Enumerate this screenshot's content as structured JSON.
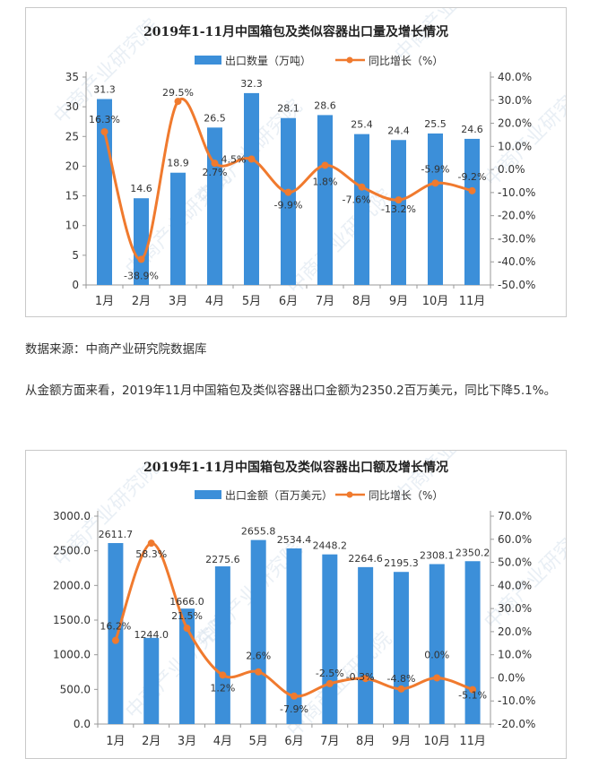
{
  "source_text": "数据来源：中商产业研究院数据库",
  "description_text": "从金额方面来看，2019年11月中国箱包及类似容器出口金额为2350.2百万美元，同比下降5.1%。",
  "watermark": "中商产业研究院",
  "colors": {
    "bar": "#3c8fd9",
    "line": "#f07a2e",
    "axis": "#999999",
    "text": "#333333"
  },
  "chart_data": [
    {
      "type": "bar",
      "title": "2019年1-11月中国箱包及类似容器出口量及增长情况",
      "categories": [
        "1月",
        "2月",
        "3月",
        "4月",
        "5月",
        "6月",
        "7月",
        "8月",
        "9月",
        "10月",
        "11月"
      ],
      "series": [
        {
          "name": "出口数量（万吨）",
          "type": "bar",
          "axis": "left",
          "values": [
            31.3,
            14.6,
            18.9,
            26.5,
            32.3,
            28.1,
            28.6,
            25.4,
            24.4,
            25.5,
            24.6
          ],
          "labels": [
            "31.3",
            "14.6",
            "18.9",
            "26.5",
            "32.3",
            "28.1",
            "28.6",
            "25.4",
            "24.4",
            "25.5",
            "24.6"
          ]
        },
        {
          "name": "同比增长（%）",
          "type": "line",
          "axis": "right",
          "values": [
            16.3,
            -38.9,
            29.5,
            2.7,
            4.5,
            -9.9,
            1.8,
            -7.6,
            -13.2,
            -5.9,
            -9.2
          ],
          "labels": [
            "16.3%",
            "-38.9%",
            "29.5%",
            "2.7%",
            "4.5%",
            "-9.9%",
            "1.8%",
            "-7.6%",
            "-13.2%",
            "-5.9%",
            "-9.2%"
          ]
        }
      ],
      "ylim": [
        0,
        35
      ],
      "yticks": [
        "0",
        "5",
        "10",
        "15",
        "20",
        "25",
        "30",
        "35"
      ],
      "y2lim": [
        -50,
        40
      ],
      "y2ticks": [
        "-50.0%",
        "-40.0%",
        "-30.0%",
        "-20.0%",
        "-10.0%",
        "0.0%",
        "10.0%",
        "20.0%",
        "30.0%",
        "40.0%"
      ],
      "legend_position": "top-center"
    },
    {
      "type": "bar",
      "title": "2019年1-11月中国箱包及类似容器出口额及增长情况",
      "categories": [
        "1月",
        "2月",
        "3月",
        "4月",
        "5月",
        "6月",
        "7月",
        "8月",
        "9月",
        "10月",
        "11月"
      ],
      "series": [
        {
          "name": "出口金额（百万美元）",
          "type": "bar",
          "axis": "left",
          "values": [
            2611.7,
            1244.0,
            1666.0,
            2275.6,
            2655.8,
            2534.4,
            2448.2,
            2264.6,
            2195.3,
            2308.1,
            2350.2
          ],
          "labels": [
            "2611.7",
            "1244.0",
            "1666.0",
            "2275.6",
            "2655.8",
            "2534.4",
            "2448.2",
            "2264.6",
            "2195.3",
            "2308.1",
            "2350.2"
          ]
        },
        {
          "name": "同比增长（%）",
          "type": "line",
          "axis": "right",
          "values": [
            16.2,
            58.3,
            21.5,
            1.2,
            2.6,
            -7.9,
            -2.5,
            -0.3,
            -4.8,
            0.0,
            -5.1
          ],
          "labels": [
            "16.2%",
            "58.3%",
            "21.5%",
            "1.2%",
            "2.6%",
            "-7.9%",
            "-2.5%",
            "-0.3%",
            "-4.8%",
            "0.0%",
            "-5.1%"
          ]
        }
      ],
      "ylim": [
        0,
        3000
      ],
      "yticks": [
        "0.0",
        "500.0",
        "1000.0",
        "1500.0",
        "2000.0",
        "2500.0",
        "3000.0"
      ],
      "y2lim": [
        -20,
        70
      ],
      "y2ticks": [
        "-20.0%",
        "-10.0%",
        "0.0%",
        "10.0%",
        "20.0%",
        "30.0%",
        "40.0%",
        "50.0%",
        "60.0%",
        "70.0%"
      ],
      "legend_position": "top-center"
    }
  ]
}
